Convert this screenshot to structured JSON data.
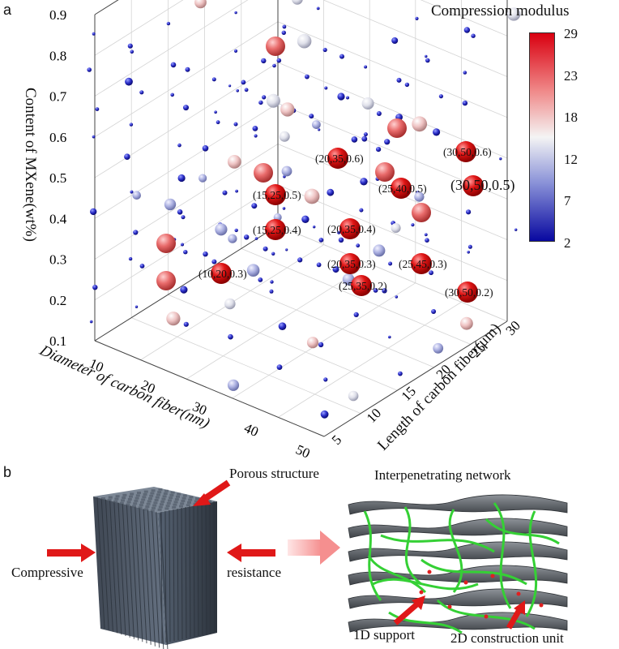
{
  "panel_a": {
    "letter": "a",
    "colorbar": {
      "title": "Compression modulus",
      "ticks": [
        "29",
        "23",
        "18",
        "12",
        "7",
        "2"
      ],
      "colors": [
        "#e0000c",
        "#f08a8a",
        "#f2f2f2",
        "#8c95d8",
        "#0a0ca8"
      ]
    },
    "axes": {
      "z_label": "Content of MXene(wt%)",
      "z_ticks": [
        "0.9",
        "0.8",
        "0.7",
        "0.6",
        "0.5",
        "0.4",
        "0.3",
        "0.2",
        "0.1"
      ],
      "x_label": "Diameter of carbon fiber(nm)",
      "x_ticks": [
        "10",
        "20",
        "30",
        "40",
        "50"
      ],
      "y_label": "Length of carbon fiber(μm)",
      "y_ticks": [
        "5",
        "10",
        "15",
        "20",
        "25",
        "30"
      ]
    },
    "annotations": [
      {
        "label": "(20,35,0.6)",
        "modulus": 27
      },
      {
        "label": "(30,50,0.6)",
        "modulus": 26
      },
      {
        "label": "(25,40,0.5)",
        "modulus": 28
      },
      {
        "label": "(30,50,0.5)",
        "modulus": 29
      },
      {
        "label": "(15,25,0.5)",
        "modulus": 28
      },
      {
        "label": "(15,25,0.4)",
        "modulus": 28
      },
      {
        "label": "(20,35,0.4)",
        "modulus": 28
      },
      {
        "label": "(20,35,0.3)",
        "modulus": 28
      },
      {
        "label": "(25,45,0.3)",
        "modulus": 28
      },
      {
        "label": "(10,20,0.3)",
        "modulus": 27
      },
      {
        "label": "(25,35,0.2)",
        "modulus": 28
      },
      {
        "label": "(30,50,0.2)",
        "modulus": 28
      }
    ]
  },
  "panel_b": {
    "letter": "b",
    "labels": {
      "porous": "Porous structure",
      "interpenetrating": "Interpenetrating network",
      "compressive": "Compressive",
      "resistance": "resistance",
      "support_1d": "1D support",
      "unit_2d": "2D construction unit"
    },
    "colors": {
      "arrow": "#e01818",
      "fiber": "#3fd23f",
      "sheet": "#555a60",
      "block": "#56606e"
    }
  }
}
